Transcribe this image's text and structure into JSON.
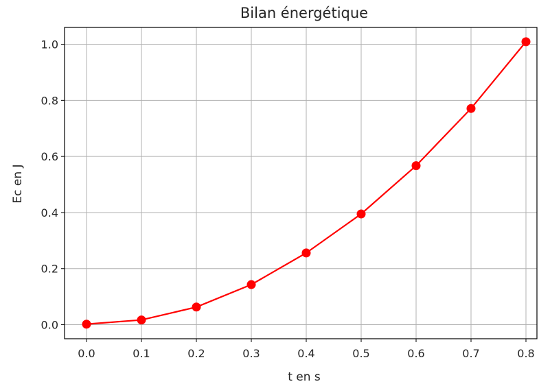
{
  "chart_data": {
    "type": "line",
    "title": "Bilan énergétique",
    "xlabel": "t en s",
    "ylabel": "Ec en J",
    "xlim": [
      -0.04,
      0.82
    ],
    "ylim": [
      -0.05,
      1.06
    ],
    "xticks": [
      0.0,
      0.1,
      0.2,
      0.3,
      0.4,
      0.5,
      0.6,
      0.7,
      0.8
    ],
    "xtick_labels": [
      "0.0",
      "0.1",
      "0.2",
      "0.3",
      "0.4",
      "0.5",
      "0.6",
      "0.7",
      "0.8"
    ],
    "yticks": [
      0.0,
      0.2,
      0.4,
      0.6,
      0.8,
      1.0
    ],
    "ytick_labels": [
      "0.0",
      "0.2",
      "0.4",
      "0.6",
      "0.8",
      "1.0"
    ],
    "grid": true,
    "series": [
      {
        "color": "#ff0000",
        "marker": "circle",
        "x": [
          0.0,
          0.1,
          0.2,
          0.3,
          0.4,
          0.5,
          0.6,
          0.7,
          0.8
        ],
        "y": [
          0.002,
          0.017,
          0.063,
          0.143,
          0.256,
          0.395,
          0.567,
          0.771,
          1.009
        ]
      }
    ]
  }
}
